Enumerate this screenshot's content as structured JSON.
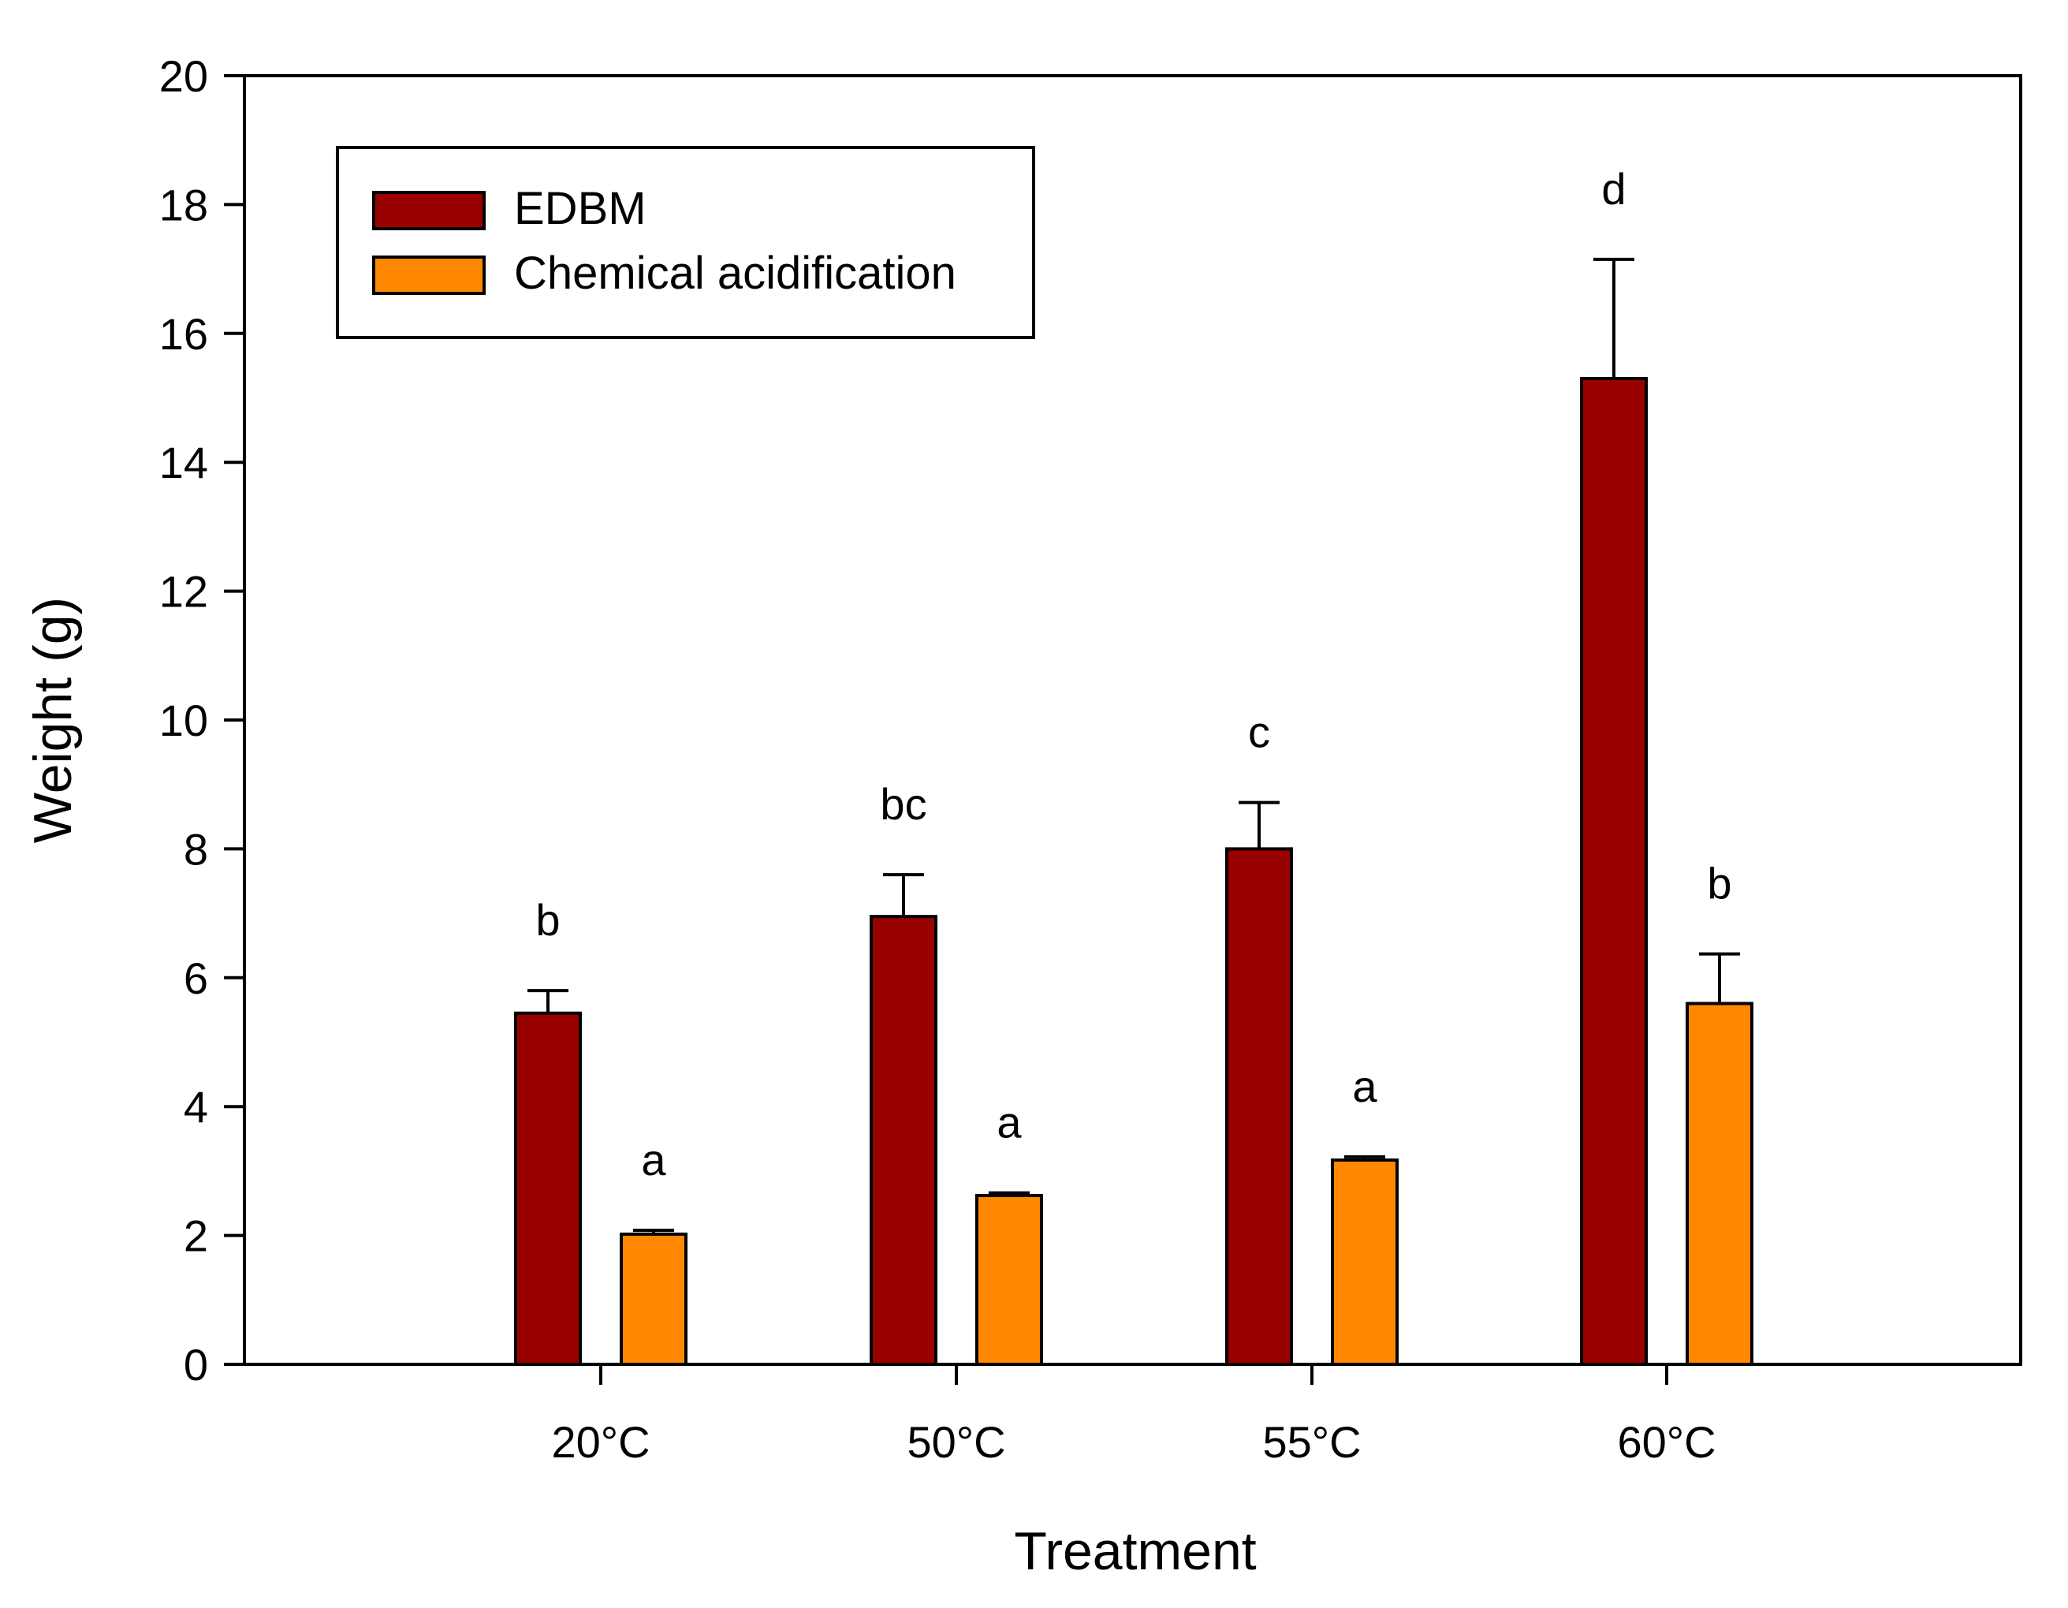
{
  "chart_data": {
    "type": "bar",
    "title": "",
    "xlabel": "Treatment",
    "ylabel": "Weight (g)",
    "ylim": [
      0,
      20
    ],
    "yticks": [
      0,
      2,
      4,
      6,
      8,
      10,
      12,
      14,
      16,
      18,
      20
    ],
    "categories": [
      "20°C",
      "50°C",
      "55°C",
      "60°C"
    ],
    "legend_position": "top-left",
    "series": [
      {
        "name": "EDBM",
        "color": "#990000",
        "values": [
          5.45,
          6.95,
          8.0,
          15.3
        ],
        "errors": [
          0.35,
          0.65,
          0.72,
          1.85
        ],
        "significance": [
          "b",
          "bc",
          "c",
          "d"
        ]
      },
      {
        "name": "Chemical acidification",
        "color": "#FF8800",
        "values": [
          2.02,
          2.62,
          3.17,
          5.6
        ],
        "errors": [
          0.06,
          0.04,
          0.05,
          0.77
        ],
        "significance": [
          "a",
          "a",
          "a",
          "b"
        ]
      }
    ]
  }
}
